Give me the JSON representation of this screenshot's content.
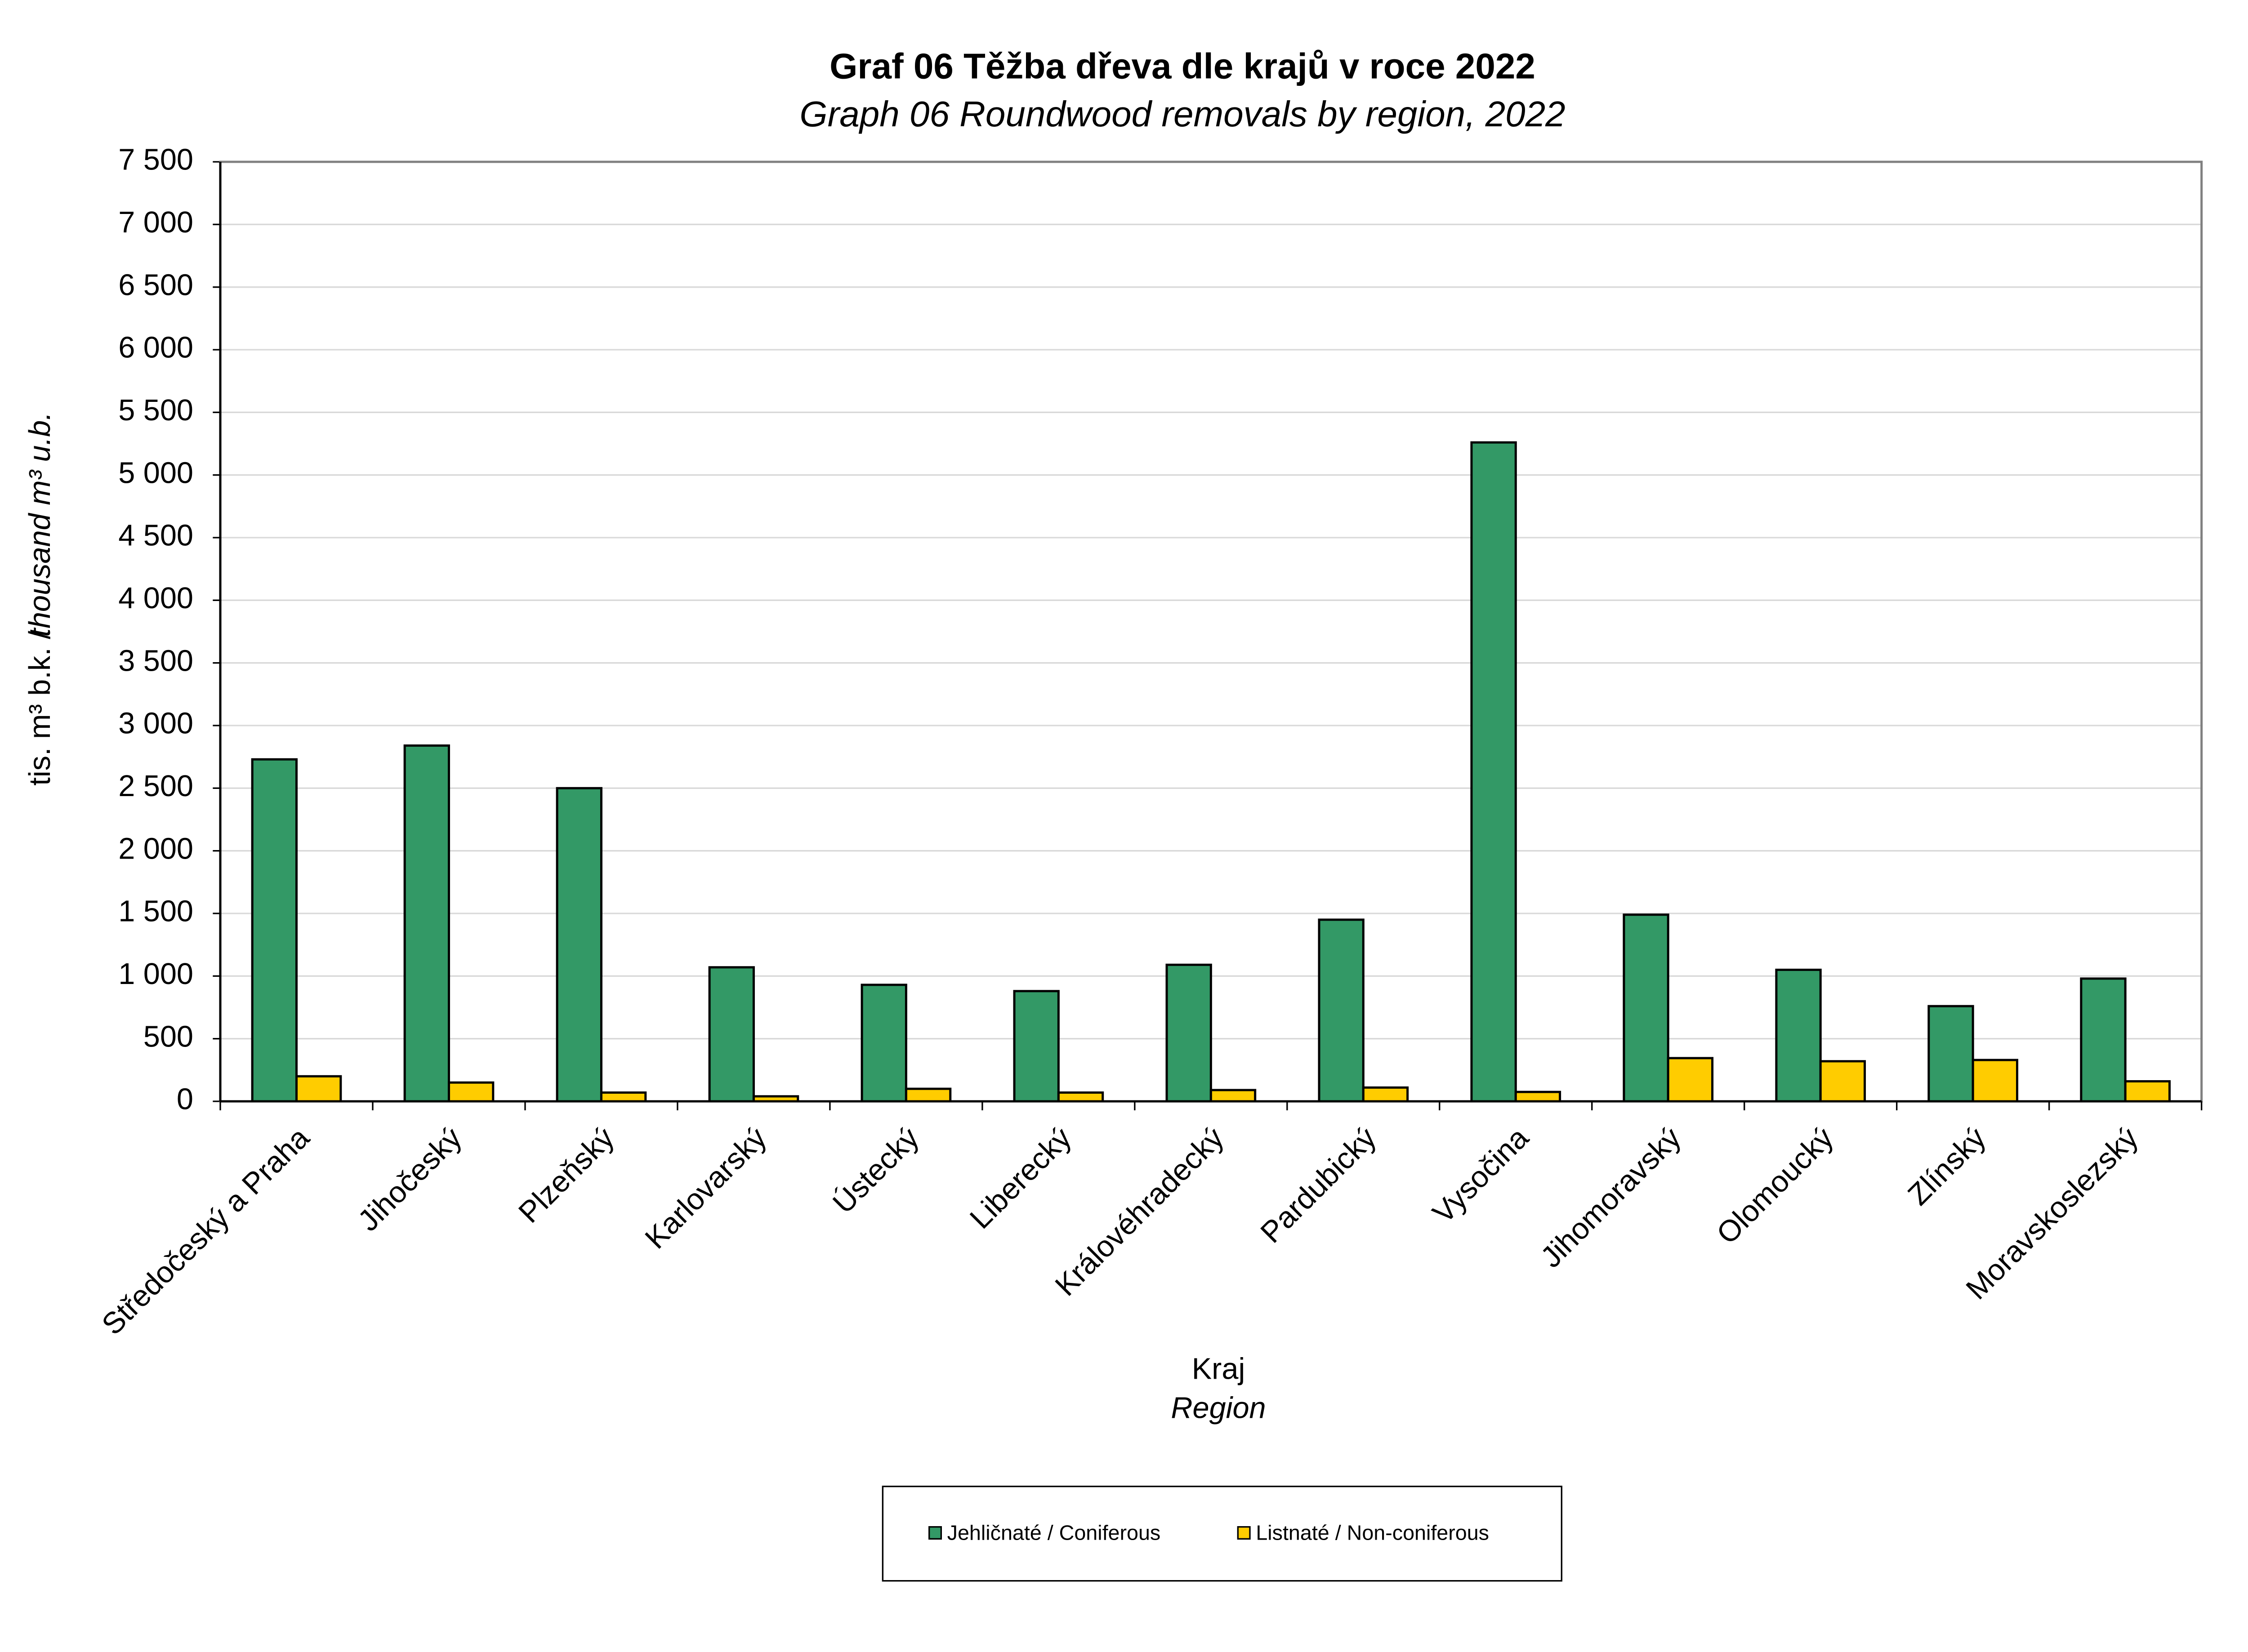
{
  "chart_data": {
    "type": "bar",
    "title": "Graf 06  Těžba dřeva dle krajů v roce 2022",
    "subtitle": "Graph 06  Roundwood removals by region, 2022",
    "y_label": "tis. m³ b.k. /",
    "y_label_en": "thousand m³ u.b.",
    "x_label": "Kraj",
    "x_label_en": "Region",
    "categories": [
      "Středočeský a Praha",
      "Jihočeský",
      "Plzeňský",
      "Karlovarský",
      "Ústecký",
      "Liberecký",
      "Královéhradecký",
      "Pardubický",
      "Vysočina",
      "Jihomoravský",
      "Olomoucký",
      "Zlínský",
      "Moravskoslezský"
    ],
    "series": [
      {
        "name": "Jehličnaté / Coniferous",
        "color": "#339966",
        "values": [
          2730,
          2840,
          2500,
          1070,
          930,
          880,
          1090,
          1450,
          5260,
          1490,
          1050,
          760,
          980
        ]
      },
      {
        "name": "Listnaté / Non-coniferous",
        "color": "#ffcc00",
        "values": [
          200,
          150,
          70,
          40,
          100,
          70,
          90,
          110,
          75,
          345,
          320,
          330,
          160
        ]
      }
    ],
    "ylim": [
      0,
      7500
    ],
    "yticks": [
      0,
      500,
      {
        "value": 1000,
        "label": "1 000"
      },
      {
        "value": 1500,
        "label": "1 500"
      },
      {
        "value": 2000,
        "label": "2 000"
      },
      {
        "value": 2500,
        "label": "2 500"
      },
      {
        "value": 3000,
        "label": "3 000"
      },
      {
        "value": 3500,
        "label": "3 500"
      },
      {
        "value": 4000,
        "label": "4 000"
      },
      {
        "value": 4500,
        "label": "4 500"
      },
      {
        "value": 5000,
        "label": "5 000"
      },
      {
        "value": 5500,
        "label": "5 500"
      },
      {
        "value": 6000,
        "label": "6 000"
      },
      {
        "value": 6500,
        "label": "6 500"
      },
      {
        "value": 7000,
        "label": "7 000"
      },
      {
        "value": 7500,
        "label": "7 500"
      }
    ],
    "grid": true,
    "legend": "bottom"
  }
}
